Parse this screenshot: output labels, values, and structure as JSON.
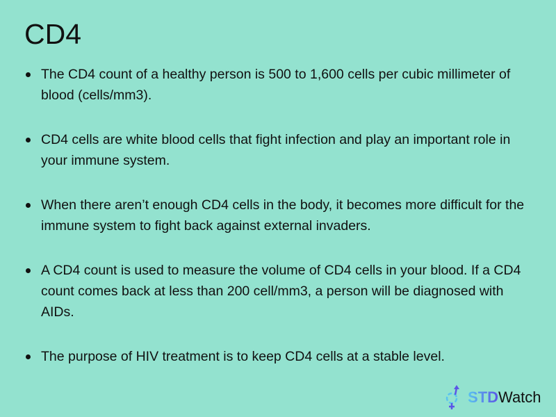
{
  "title": "CD4",
  "bullets": [
    "The CD4 count of a healthy person is 500 to 1,600 cells per cubic millimeter of blood (cells/mm3).",
    "CD4 cells are white blood cells that fight infection and play an important role in your immune system.",
    "When there aren’t enough CD4 cells in the body, it becomes more difficult for the immune system to fight back against external invaders.",
    "A CD4 count is used to measure the volume of CD4 cells in your blood. If a CD4 count comes back at less than 200 cell/mm3, a person will be diagnosed with AIDs.",
    "The purpose of HIV treatment is to keep CD4 cells at a stable level."
  ],
  "logo": {
    "part1": "STD",
    "part2": "Watch",
    "icon": "gender-symbol-icon"
  },
  "colors": {
    "background": "#93e2cf",
    "logo_blue": "#5b55e6",
    "logo_cyan": "#59c3f0"
  }
}
